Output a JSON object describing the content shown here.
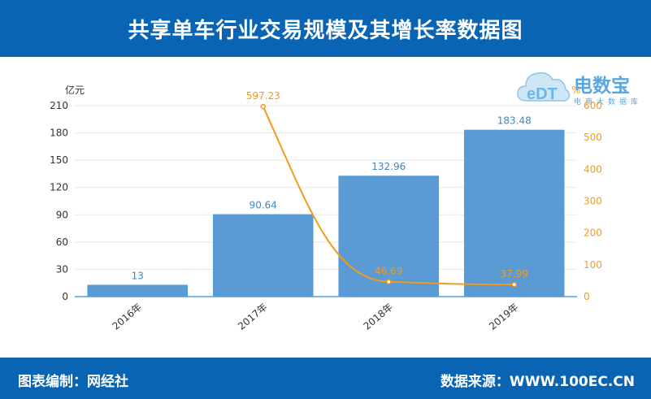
{
  "header": {
    "title": "共享单车行业交易规模及其增长率数据图"
  },
  "footer": {
    "left": "图表编制：网经社",
    "right": "数据来源：WWW.100EC.CN"
  },
  "logo": {
    "brand": "电数宝",
    "sub": "电商大数据库",
    "icon": "cloud-edt-icon"
  },
  "colors": {
    "bar": "#5b9bd5",
    "line": "#f29b1b",
    "header": "#0a64b4"
  },
  "chart_data": {
    "type": "bar",
    "categories": [
      "2016年",
      "2017年",
      "2018年",
      "2019年"
    ],
    "series": [
      {
        "type": "bar",
        "axis": "left",
        "values": [
          13,
          90.64,
          132.96,
          183.48
        ]
      },
      {
        "type": "line",
        "axis": "right",
        "values": [
          null,
          597.23,
          46.69,
          37.99
        ]
      }
    ],
    "ylabel_left": "亿元",
    "ylabel_right": "%",
    "ylim_left": [
      0,
      210
    ],
    "ylim_right": [
      0,
      600
    ],
    "yticks_left": [
      0,
      30,
      60,
      90,
      120,
      150,
      180,
      210
    ],
    "yticks_right": [
      0,
      100,
      200,
      300,
      400,
      500,
      600
    ],
    "grid": true
  }
}
